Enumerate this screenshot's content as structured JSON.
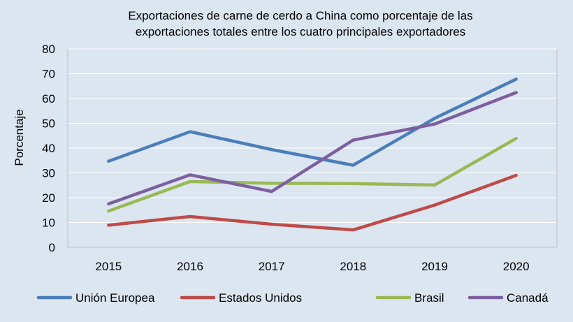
{
  "chart_data": {
    "type": "line",
    "title_lines": [
      "Exportaciones de carne de cerdo a China como porcentaje de las",
      "exportaciones totales entre los cuatro principales exportadores"
    ],
    "xlabel": "",
    "ylabel": "Porcentaje",
    "categories": [
      "2015",
      "2016",
      "2017",
      "2018",
      "2019",
      "2020"
    ],
    "ylim": [
      0,
      80
    ],
    "yticks": [
      0,
      10,
      20,
      30,
      40,
      50,
      60,
      70,
      80
    ],
    "grid": true,
    "legend_position": "bottom",
    "series": [
      {
        "name": "Unión Europea",
        "color": "#4a7ebb",
        "values": [
          34.7,
          46.6,
          39.4,
          33.1,
          52.0,
          67.8
        ]
      },
      {
        "name": "Estados Unidos",
        "color": "#be4b48",
        "values": [
          8.9,
          12.4,
          9.3,
          7.0,
          17.0,
          29.0
        ]
      },
      {
        "name": "Brasil",
        "color": "#98b954",
        "values": [
          14.6,
          26.5,
          25.8,
          25.7,
          25.1,
          43.9
        ]
      },
      {
        "name": "Canadá",
        "color": "#7d5fa0",
        "values": [
          17.5,
          29.2,
          22.5,
          43.2,
          49.7,
          62.4
        ]
      }
    ]
  }
}
